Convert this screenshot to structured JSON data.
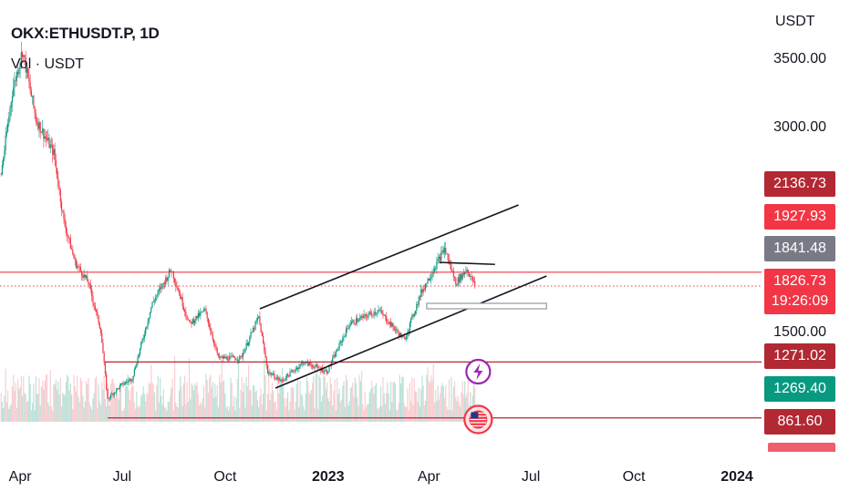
{
  "chart_data": {
    "type": "candlestick",
    "title": "OKX:ETHUSDT.P, 1D",
    "indicator": "Vol · USDT",
    "currency": "USDT",
    "y_ticks": [
      {
        "label": "3500.00",
        "value": 3500
      },
      {
        "label": "3000.00",
        "value": 3000
      },
      {
        "label": "1500.00",
        "value": 1500
      }
    ],
    "x_ticks": [
      {
        "label": "Apr",
        "date": "2022-04-01",
        "bold": false
      },
      {
        "label": "Jul",
        "date": "2022-07-01",
        "bold": false
      },
      {
        "label": "Oct",
        "date": "2022-10-01",
        "bold": false
      },
      {
        "label": "2023",
        "date": "2023-01-01",
        "bold": true
      },
      {
        "label": "Apr",
        "date": "2023-04-01",
        "bold": false
      },
      {
        "label": "Jul",
        "date": "2023-07-01",
        "bold": false
      },
      {
        "label": "Oct",
        "date": "2023-10-01",
        "bold": false
      },
      {
        "label": "2024",
        "date": "2024-01-01",
        "bold": true
      }
    ],
    "price_series": [
      {
        "date": "2022-03-15",
        "price": 2650
      },
      {
        "date": "2022-03-25",
        "price": 3250
      },
      {
        "date": "2022-04-03",
        "price": 3550
      },
      {
        "date": "2022-04-15",
        "price": 3050
      },
      {
        "date": "2022-05-01",
        "price": 2800
      },
      {
        "date": "2022-05-10",
        "price": 2300
      },
      {
        "date": "2022-05-20",
        "price": 2000
      },
      {
        "date": "2022-06-01",
        "price": 1850
      },
      {
        "date": "2022-06-12",
        "price": 1500
      },
      {
        "date": "2022-06-18",
        "price": 1000
      },
      {
        "date": "2022-06-30",
        "price": 1100
      },
      {
        "date": "2022-07-10",
        "price": 1150
      },
      {
        "date": "2022-07-28",
        "price": 1700
      },
      {
        "date": "2022-08-14",
        "price": 1950
      },
      {
        "date": "2022-08-30",
        "price": 1550
      },
      {
        "date": "2022-09-13",
        "price": 1650
      },
      {
        "date": "2022-09-25",
        "price": 1300
      },
      {
        "date": "2022-10-15",
        "price": 1300
      },
      {
        "date": "2022-10-31",
        "price": 1600
      },
      {
        "date": "2022-11-08",
        "price": 1200
      },
      {
        "date": "2022-11-20",
        "price": 1130
      },
      {
        "date": "2022-12-10",
        "price": 1270
      },
      {
        "date": "2022-12-31",
        "price": 1200
      },
      {
        "date": "2023-01-20",
        "price": 1550
      },
      {
        "date": "2023-02-15",
        "price": 1650
      },
      {
        "date": "2023-03-10",
        "price": 1430
      },
      {
        "date": "2023-03-25",
        "price": 1780
      },
      {
        "date": "2023-04-15",
        "price": 2100
      },
      {
        "date": "2023-04-25",
        "price": 1850
      },
      {
        "date": "2023-05-05",
        "price": 1950
      },
      {
        "date": "2023-05-12",
        "price": 1826.73
      }
    ],
    "horizontal_lines": [
      {
        "value": 1927.93,
        "style": "solid",
        "color": "#f23645"
      },
      {
        "value": 1826.73,
        "style": "dotted",
        "color": "#f23645"
      },
      {
        "value": 1271.02,
        "style": "solid",
        "color": "#b22833"
      },
      {
        "value": 861.6,
        "style": "solid",
        "color": "#b22833"
      }
    ],
    "channel": {
      "upper": {
        "from": {
          "date": "2022-11-01",
          "price": 1660
        },
        "to": {
          "date": "2023-06-20",
          "price": 2420
        }
      },
      "lower": {
        "from": {
          "date": "2022-11-15",
          "price": 1080
        },
        "to": {
          "date": "2023-07-15",
          "price": 1900
        }
      }
    },
    "resistance_segment": {
      "from": {
        "date": "2023-04-10",
        "price": 2000
      },
      "to": {
        "date": "2023-05-30",
        "price": 1985
      }
    },
    "support_box": {
      "from": {
        "date": "2023-03-30",
        "price": 1700
      },
      "to": {
        "date": "2023-07-15",
        "price": 1660
      }
    },
    "price_labels": [
      {
        "text": "2136.73",
        "value": 2136.73,
        "color": "#b22833"
      },
      {
        "text": "1927.93",
        "value": 1927.93,
        "color": "#f23645"
      },
      {
        "text": "1841.48",
        "value": 1841.48,
        "color": "#787b86"
      },
      {
        "text": "1826.73",
        "sub": "19:26:09",
        "value": 1826.73,
        "color": "#f23645"
      },
      {
        "text": "1271.02",
        "value": 1271.02,
        "color": "#b22833"
      },
      {
        "text": "1269.40",
        "value": 1269.4,
        "color": "#089981"
      },
      {
        "text": "861.60",
        "value": 861.6,
        "color": "#b22833"
      }
    ],
    "markers": [
      {
        "type": "lightning-icon",
        "date": "2023-05-15",
        "price": 1200,
        "color": "#9c27b0"
      },
      {
        "type": "us-flag-icon",
        "date": "2023-05-15",
        "price": 850,
        "color": "#f23645"
      }
    ],
    "colors": {
      "up": "#089981",
      "down": "#f23645",
      "line": "#131722"
    }
  }
}
